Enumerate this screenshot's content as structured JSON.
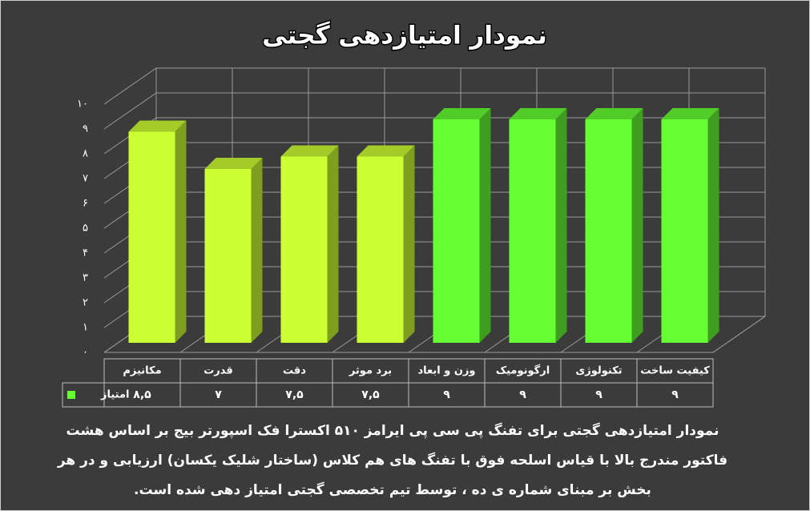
{
  "chart_data": {
    "type": "bar3d",
    "title": "نمودار امتیازدهی گجتی",
    "categories": [
      "مکانیزم",
      "قدرت",
      "دقت",
      "برد موثر",
      "وزن و ابعاد",
      "ارگونومیک",
      "تکنولوژی",
      "کیفیت ساخت"
    ],
    "series": [
      {
        "name": "امتیاز",
        "color": "#66ff33",
        "colors": [
          "#ccff33",
          "#ccff33",
          "#ccff33",
          "#ccff33",
          "#66ff33",
          "#66ff33",
          "#66ff33",
          "#66ff33"
        ],
        "values": [
          8.5,
          7,
          7.5,
          7.5,
          9,
          9,
          9,
          9
        ],
        "value_labels": [
          "۸,۵",
          "۷",
          "۷,۵",
          "۷,۵",
          "۹",
          "۹",
          "۹",
          "۹"
        ]
      }
    ],
    "ylim": [
      0,
      10
    ],
    "yticks": [
      {
        "value": 0,
        "label": "۰"
      },
      {
        "value": 1,
        "label": "۱"
      },
      {
        "value": 2,
        "label": "۲"
      },
      {
        "value": 3,
        "label": "۳"
      },
      {
        "value": 4,
        "label": "۴"
      },
      {
        "value": 5,
        "label": "۵"
      },
      {
        "value": 6,
        "label": "۶"
      },
      {
        "value": 7,
        "label": "۷"
      },
      {
        "value": 8,
        "label": "۸"
      },
      {
        "value": 9,
        "label": "۹"
      },
      {
        "value": 10,
        "label": "۱۰"
      }
    ],
    "grid": true,
    "description": [
      "نمودار امتیازدهی گجتی برای تفنگ پی سی پی ایرامز ۵۱۰ اکسترا فک اسپورتر بیج بر اساس هشت",
      "فاکتور مندرج بالا با قیاس اسلحه فوق با تفنگ های هم کلاس (ساختار شلیک یکسان) ارزیابی و در هر",
      "بخش بر مبنای شماره ی ده ، توسط تیم تخصصی گجتی امتیاز دهی شده است."
    ]
  }
}
